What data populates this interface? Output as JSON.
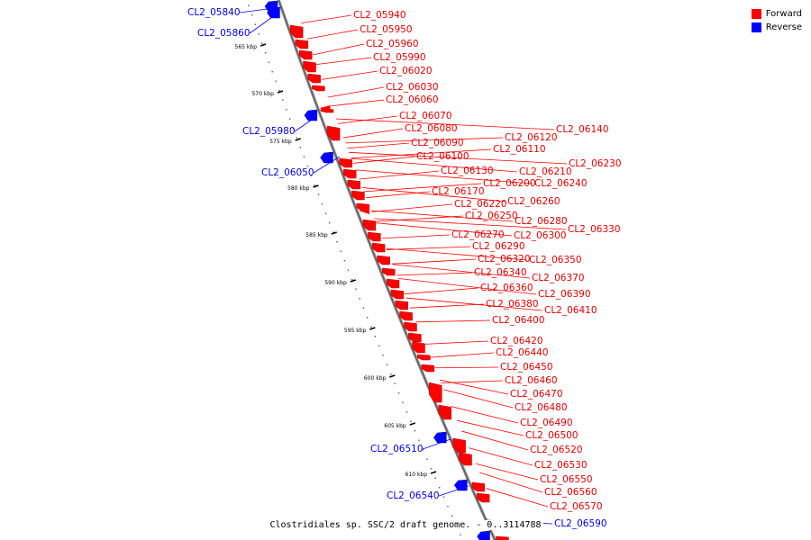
{
  "legend": {
    "forward_label": "Forward",
    "reverse_label": "Reverse",
    "forward_color": "#ff0000",
    "reverse_color": "#0000ff"
  },
  "caption": "Clostridiales sp. SSC/2 draft genome. - 0..3114788",
  "ticks": [
    "565 kbp",
    "570 kbp",
    "575 kbp",
    "580 kbp",
    "585 kbp",
    "590 kbp",
    "595 kbp",
    "600 kbp",
    "605 kbp",
    "610 kbp"
  ],
  "reverse_genes": [
    "CL2_05840",
    "CL2_05860",
    "CL2_05980",
    "CL2_06050",
    "CL2_06510",
    "CL2_06540",
    "CL2_06590"
  ],
  "forward_genes": [
    "CL2_05940",
    "CL2_05950",
    "CL2_05960",
    "CL2_05990",
    "CL2_06020",
    "CL2_06030",
    "CL2_06060",
    "CL2_06070",
    "CL2_06080",
    "CL2_06090",
    "CL2_06100",
    "CL2_06110",
    "CL2_06120",
    "CL2_06140",
    "CL2_06130",
    "CL2_06210",
    "CL2_06230",
    "CL2_06200",
    "CL2_06240",
    "CL2_06170",
    "CL2_06220",
    "CL2_06260",
    "CL2_06250",
    "CL2_06280",
    "CL2_06270",
    "CL2_06300",
    "CL2_06330",
    "CL2_06290",
    "CL2_06320",
    "CL2_06350",
    "CL2_06340",
    "CL2_06370",
    "CL2_06360",
    "CL2_06390",
    "CL2_06380",
    "CL2_06410",
    "CL2_06400",
    "CL2_06420",
    "CL2_06440",
    "CL2_06450",
    "CL2_06460",
    "CL2_06470",
    "CL2_06480",
    "CL2_06490",
    "CL2_06500",
    "CL2_06520",
    "CL2_06530",
    "CL2_06550",
    "CL2_06560",
    "CL2_06570"
  ]
}
